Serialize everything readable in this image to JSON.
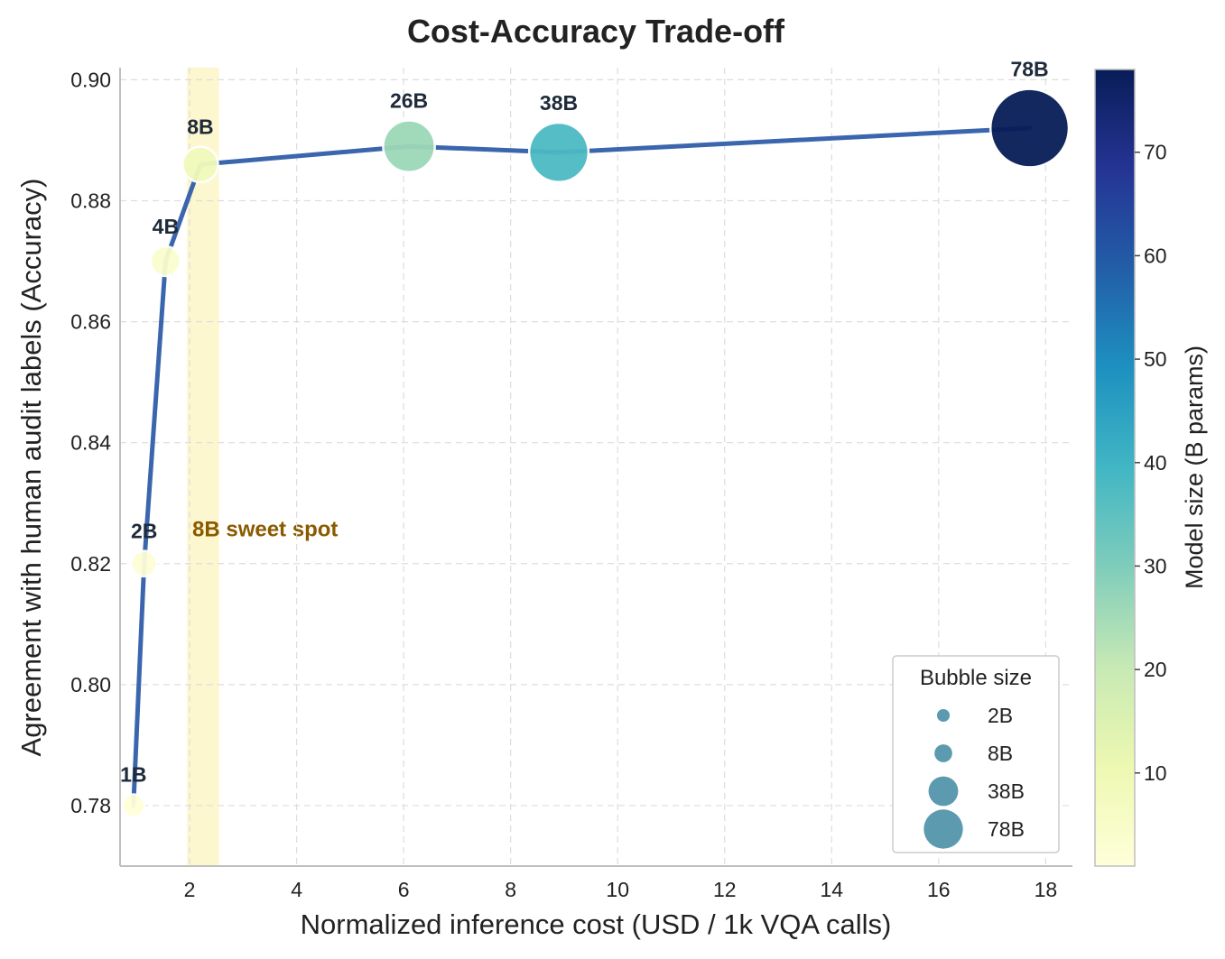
{
  "chart_data": {
    "type": "scatter",
    "title": "Cost-Accuracy Trade-off",
    "xlabel": "Normalized inference cost (USD / 1k VQA calls)",
    "ylabel": "Agreement with human audit labels (Accuracy)",
    "xlim": [
      0.7,
      18.5
    ],
    "ylim": [
      0.77,
      0.902
    ],
    "xticks": [
      2,
      4,
      6,
      8,
      10,
      12,
      14,
      16,
      18
    ],
    "yticks": [
      0.78,
      0.8,
      0.82,
      0.84,
      0.86,
      0.88,
      0.9
    ],
    "grid": true,
    "points": [
      {
        "label": "1B",
        "x": 0.95,
        "y": 0.78,
        "size_b": 1
      },
      {
        "label": "2B",
        "x": 1.15,
        "y": 0.82,
        "size_b": 2
      },
      {
        "label": "4B",
        "x": 1.55,
        "y": 0.87,
        "size_b": 4
      },
      {
        "label": "8B",
        "x": 2.2,
        "y": 0.886,
        "size_b": 8
      },
      {
        "label": "26B",
        "x": 6.1,
        "y": 0.889,
        "size_b": 26
      },
      {
        "label": "38B",
        "x": 8.9,
        "y": 0.888,
        "size_b": 38
      },
      {
        "label": "78B",
        "x": 17.7,
        "y": 0.892,
        "size_b": 78
      }
    ],
    "highlight_band": {
      "x_from": 1.95,
      "x_to": 2.55,
      "label": "8B sweet spot",
      "label_x": 2.05,
      "label_y": 0.8245,
      "color": "#fdf6c8",
      "label_color": "#8a5a00"
    },
    "line_color": "#3b66ad",
    "colorbar": {
      "label": "Model size (B params)",
      "range": [
        1,
        78
      ],
      "ticks": [
        10,
        20,
        30,
        40,
        50,
        60,
        70
      ],
      "colormap": "YlGnBu"
    },
    "legend": {
      "title": "Bubble size",
      "position": "lower-right",
      "entries": [
        {
          "label": "2B",
          "size_b": 2
        },
        {
          "label": "8B",
          "size_b": 8
        },
        {
          "label": "38B",
          "size_b": 38
        },
        {
          "label": "78B",
          "size_b": 78
        }
      ],
      "marker_color": "#4a8fa6"
    }
  }
}
